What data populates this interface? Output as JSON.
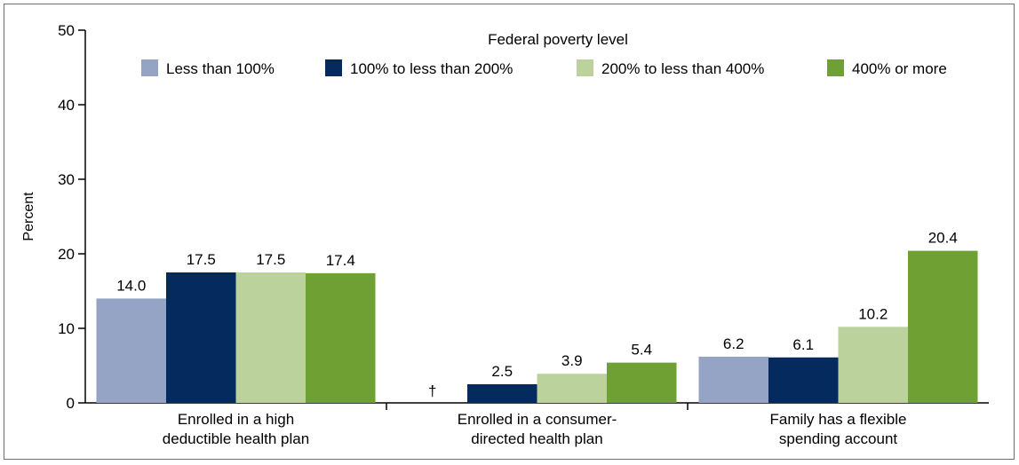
{
  "chart_data": {
    "type": "bar",
    "title": "",
    "ylabel": "Percent",
    "xlabel": "",
    "ylim": [
      0,
      50
    ],
    "yticks": [
      0,
      10,
      20,
      30,
      40,
      50
    ],
    "grid": false,
    "legend_title": "Federal poverty level",
    "legend_position": "top",
    "categories": [
      [
        "Enrolled in a high",
        "deductible health plan"
      ],
      [
        "Enrolled in a consumer-",
        "directed health plan"
      ],
      [
        "Family has a flexible",
        "spending account"
      ]
    ],
    "series": [
      {
        "name": "Less than 100%",
        "color": "#95a4c4",
        "values": [
          14.0,
          null,
          6.2
        ],
        "labels": [
          "14.0",
          "†",
          "6.2"
        ]
      },
      {
        "name": "100% to less than 200%",
        "color": "#042a5e",
        "values": [
          17.5,
          2.5,
          6.1
        ],
        "labels": [
          "17.5",
          "2.5",
          "6.1"
        ]
      },
      {
        "name": "200% to less than 400%",
        "color": "#bcd29d",
        "values": [
          17.5,
          3.9,
          10.2
        ],
        "labels": [
          "17.5",
          "3.9",
          "10.2"
        ]
      },
      {
        "name": "400% or more",
        "color": "#6ea033",
        "values": [
          17.4,
          5.4,
          20.4
        ],
        "labels": [
          "17.4",
          "5.4",
          "20.4"
        ]
      }
    ]
  }
}
